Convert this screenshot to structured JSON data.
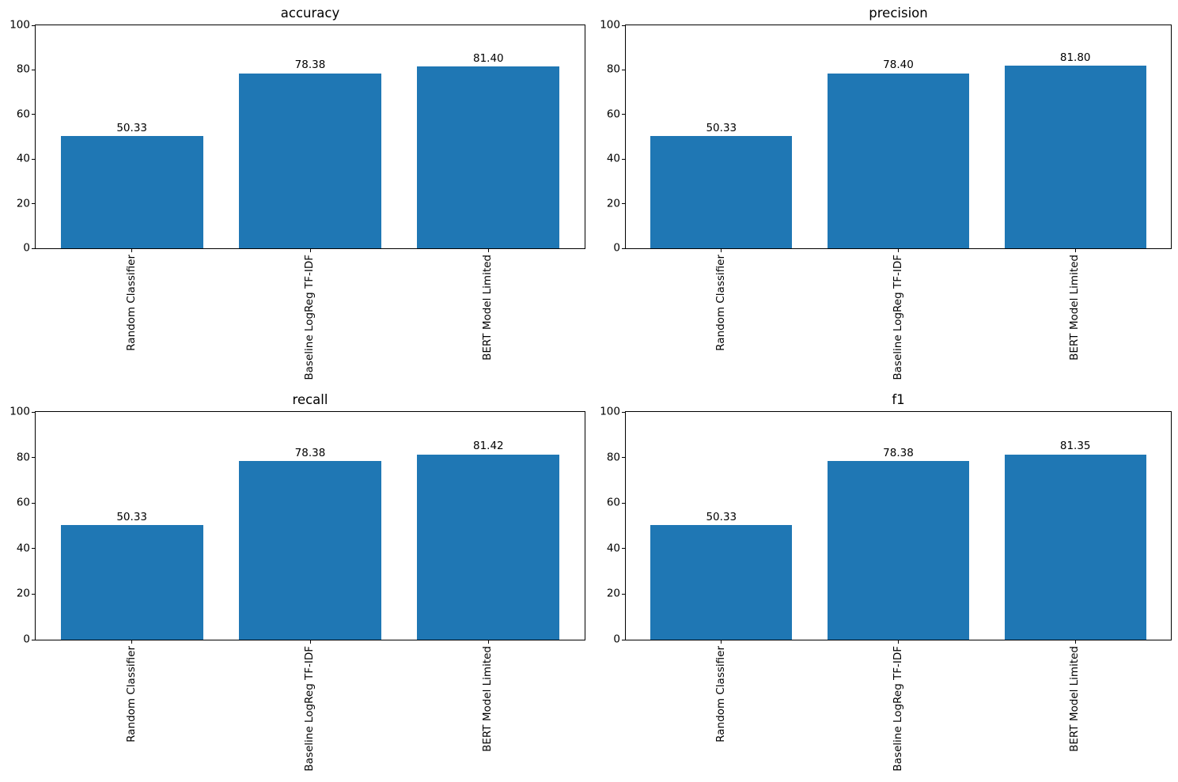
{
  "figure": {
    "background": "#ffffff",
    "text_color": "#000000",
    "layout": "2x2 grid of subplots"
  },
  "chart_data": [
    {
      "type": "bar",
      "title": "accuracy",
      "categories": [
        "Random Classifier",
        "Baseline LogReg TF-IDF",
        "BERT Model Limited"
      ],
      "values": [
        50.33,
        78.38,
        81.4
      ],
      "value_labels": [
        "50.33",
        "78.38",
        "81.40"
      ],
      "xlabel": "",
      "ylabel": "",
      "ylim": [
        0,
        100
      ],
      "yticks": [
        0,
        20,
        40,
        60,
        80,
        100
      ],
      "bar_color": "#1f77b4",
      "grid": false,
      "legend": null,
      "xtick_rotation": 90
    },
    {
      "type": "bar",
      "title": "precision",
      "categories": [
        "Random Classifier",
        "Baseline LogReg TF-IDF",
        "BERT Model Limited"
      ],
      "values": [
        50.33,
        78.4,
        81.8
      ],
      "value_labels": [
        "50.33",
        "78.40",
        "81.80"
      ],
      "xlabel": "",
      "ylabel": "",
      "ylim": [
        0,
        100
      ],
      "yticks": [
        0,
        20,
        40,
        60,
        80,
        100
      ],
      "bar_color": "#1f77b4",
      "grid": false,
      "legend": null,
      "xtick_rotation": 90
    },
    {
      "type": "bar",
      "title": "recall",
      "categories": [
        "Random Classifier",
        "Baseline LogReg TF-IDF",
        "BERT Model Limited"
      ],
      "values": [
        50.33,
        78.38,
        81.42
      ],
      "value_labels": [
        "50.33",
        "78.38",
        "81.42"
      ],
      "xlabel": "",
      "ylabel": "",
      "ylim": [
        0,
        100
      ],
      "yticks": [
        0,
        20,
        40,
        60,
        80,
        100
      ],
      "bar_color": "#1f77b4",
      "grid": false,
      "legend": null,
      "xtick_rotation": 90
    },
    {
      "type": "bar",
      "title": "f1",
      "categories": [
        "Random Classifier",
        "Baseline LogReg TF-IDF",
        "BERT Model Limited"
      ],
      "values": [
        50.33,
        78.38,
        81.35
      ],
      "value_labels": [
        "50.33",
        "78.38",
        "81.35"
      ],
      "xlabel": "",
      "ylabel": "",
      "ylim": [
        0,
        100
      ],
      "yticks": [
        0,
        20,
        40,
        60,
        80,
        100
      ],
      "bar_color": "#1f77b4",
      "grid": false,
      "legend": null,
      "xtick_rotation": 90
    }
  ]
}
